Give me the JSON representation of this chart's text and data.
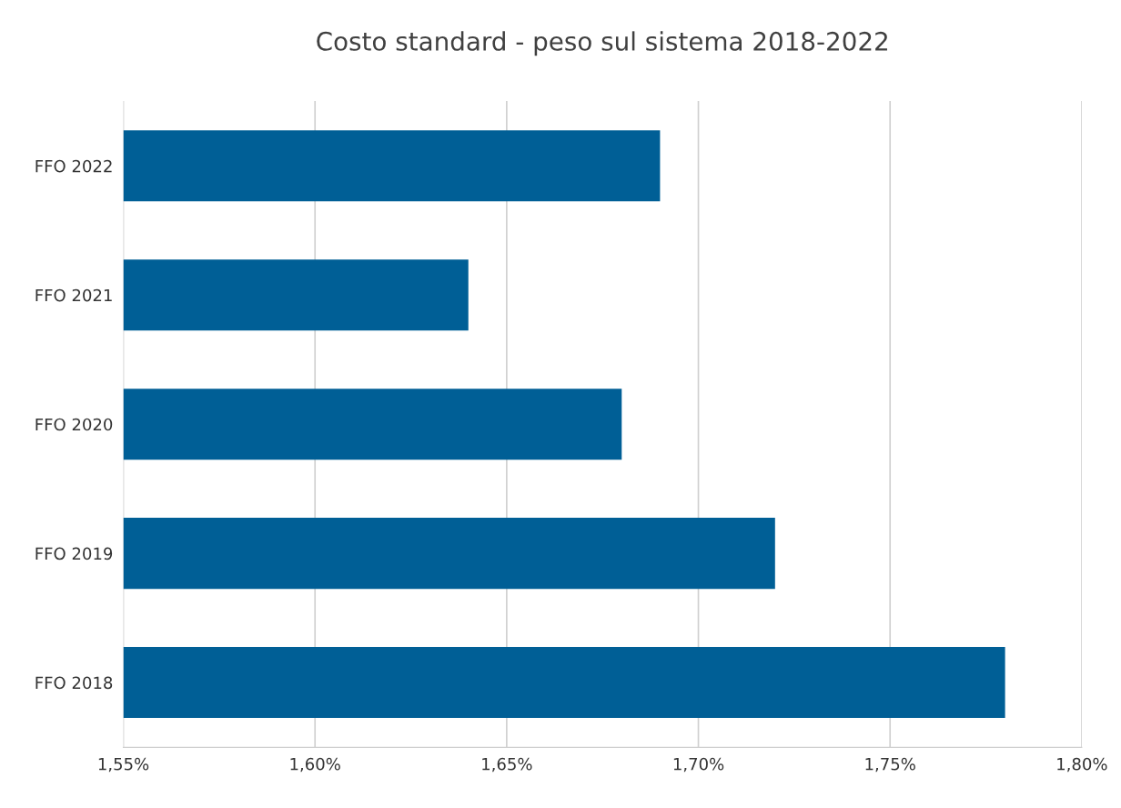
{
  "chart_data": {
    "type": "bar",
    "orientation": "horizontal",
    "title": "Costo standard - peso sul sistema 2018-2022",
    "categories": [
      "FFO 2022",
      "FFO 2021",
      "FFO 2020",
      "FFO 2019",
      "FFO 2018"
    ],
    "values": [
      1.69,
      1.64,
      1.68,
      1.72,
      1.78
    ],
    "color": "#005f96",
    "xlim": [
      1.55,
      1.8
    ],
    "xticks": [
      {
        "value": 1.55,
        "label": "1,55%"
      },
      {
        "value": 1.6,
        "label": "1,60%"
      },
      {
        "value": 1.65,
        "label": "1,65%"
      },
      {
        "value": 1.7,
        "label": "1,70%"
      },
      {
        "value": 1.75,
        "label": "1,75%"
      },
      {
        "value": 1.8,
        "label": "1,80%"
      }
    ],
    "grid": "x"
  }
}
